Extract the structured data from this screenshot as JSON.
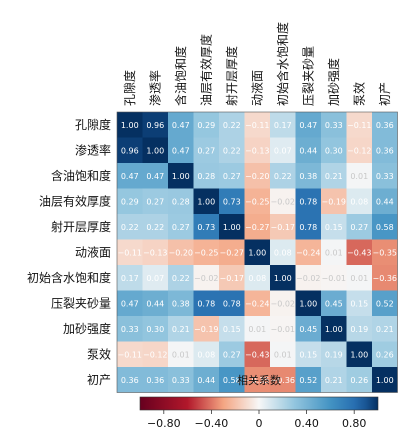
{
  "chart_data": {
    "type": "heatmap",
    "title": "",
    "variables": [
      "孔隙度",
      "渗透率",
      "含油饱和度",
      "油层有效厚度",
      "射开层厚度",
      "动液面",
      "初始含水饱和度",
      "压裂夹砂量",
      "加砂强度",
      "泵效",
      "初产"
    ],
    "values": [
      [
        1.0,
        0.96,
        0.47,
        0.29,
        0.22,
        -0.11,
        0.17,
        0.47,
        0.33,
        -0.11,
        0.36
      ],
      [
        0.96,
        1.0,
        0.47,
        0.27,
        0.22,
        -0.13,
        0.07,
        0.44,
        0.3,
        -0.12,
        0.36
      ],
      [
        0.47,
        0.47,
        1.0,
        0.28,
        0.27,
        -0.2,
        0.22,
        0.38,
        0.21,
        0.01,
        0.33
      ],
      [
        0.29,
        0.27,
        0.28,
        1.0,
        0.73,
        -0.25,
        -0.02,
        0.78,
        -0.19,
        0.08,
        0.44
      ],
      [
        0.22,
        0.22,
        0.27,
        0.73,
        1.0,
        -0.27,
        -0.17,
        0.78,
        0.15,
        0.27,
        0.58
      ],
      [
        -0.11,
        -0.13,
        -0.2,
        -0.25,
        -0.27,
        1.0,
        0.08,
        -0.24,
        0.01,
        -0.43,
        -0.35
      ],
      [
        0.17,
        0.07,
        0.22,
        -0.02,
        -0.17,
        0.08,
        1.0,
        -0.02,
        -0.01,
        0.01,
        -0.36
      ],
      [
        0.47,
        0.44,
        0.38,
        0.78,
        0.78,
        -0.24,
        -0.02,
        1.0,
        0.45,
        0.15,
        0.52
      ],
      [
        0.33,
        0.3,
        0.21,
        -0.19,
        0.15,
        0.01,
        -0.01,
        0.45,
        1.0,
        0.19,
        0.21
      ],
      [
        -0.11,
        -0.12,
        0.01,
        0.08,
        0.27,
        -0.43,
        0.01,
        0.15,
        0.19,
        1.0,
        0.26
      ],
      [
        0.36,
        0.36,
        0.33,
        0.44,
        0.58,
        -0.35,
        -0.36,
        0.52,
        0.21,
        0.26,
        1.0
      ]
    ],
    "colorbar": {
      "label": "相关系数",
      "range": [
        -1.0,
        1.0
      ],
      "ticks": [
        -0.8,
        -0.4,
        0,
        0.4,
        0.8
      ],
      "tick_labels": [
        "−0.80",
        "−0.40",
        "0",
        "0.40",
        "0.80"
      ],
      "colormap": "RdBu",
      "negative_color": "#67001f",
      "neutral_color": "#f7f7f7",
      "positive_color": "#053061",
      "orientation": "horizontal",
      "position": "bottom"
    }
  }
}
